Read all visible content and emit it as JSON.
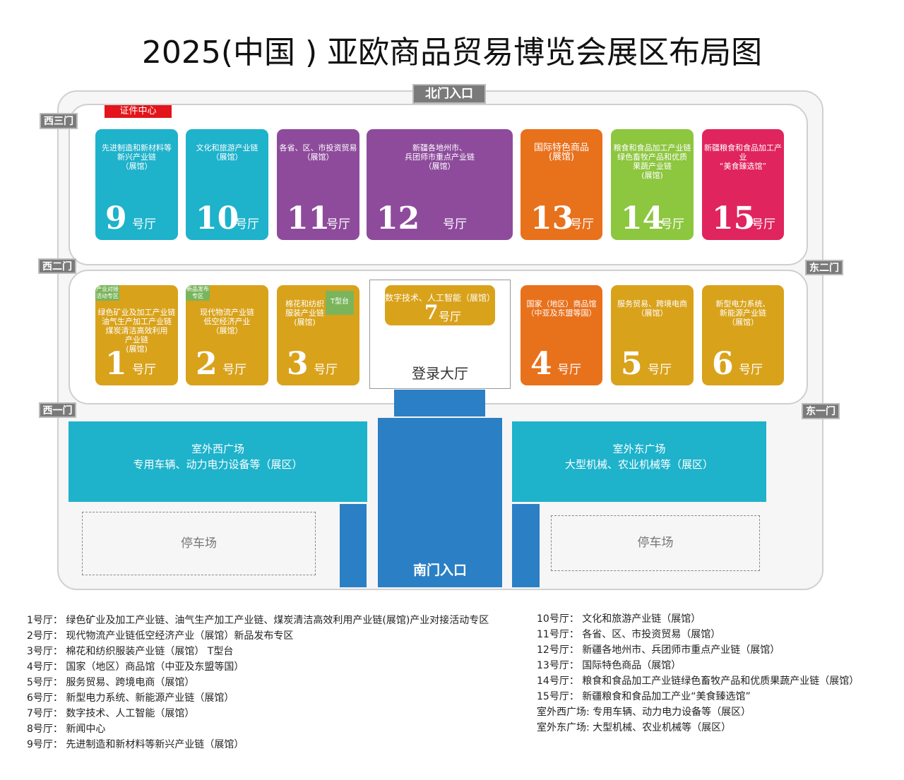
{
  "title": "2025(中国 ) 亚欧商品贸易博览会展区布局图",
  "colors": {
    "cyan": "#1eb2cb",
    "purple": "#8e4b9c",
    "orange": "#e8711c",
    "green": "#8dc63f",
    "pink": "#e0245e",
    "gold": "#d9a21b",
    "blue": "#2b7fc4",
    "gate": "#7a7a7a",
    "cert": "#e3141b"
  },
  "gates": {
    "north": "北门入口",
    "west3": "西三门",
    "west2": "西二门",
    "west1": "西一门",
    "east2": "东二门",
    "east1": "东一门",
    "south": "南门入口"
  },
  "cert_center": "证件中心",
  "unit": "号厅",
  "halls_top": [
    {
      "num": "9",
      "desc": "先进制造和新材料等\n新兴产业链\n（展馆）",
      "color": "cyan"
    },
    {
      "num": "10",
      "desc": "文化和旅游产业链\n（展馆）",
      "color": "cyan"
    },
    {
      "num": "11",
      "desc": "各省、区、市投资贸易\n（展馆）",
      "color": "purple"
    },
    {
      "num": "12",
      "desc": "新疆各地州市、\n兵团师市重点产业链\n（展馆）",
      "color": "purple"
    },
    {
      "num": "13",
      "desc": "国际特色商品\n(展馆)",
      "color": "orange"
    },
    {
      "num": "14",
      "desc": "粮食和食品加工产业链\n绿色畜牧产品和优质\n果蔬产业链\n(展馆)",
      "color": "green"
    },
    {
      "num": "15",
      "desc": "新疆粮食和食品加工产业\n“美食臻选馆”",
      "color": "pink"
    }
  ],
  "halls_bottom": [
    {
      "num": "1",
      "desc": "绿色矿业及加工产业链\n油气生产加工产业链\n煤炭清洁高效利用\n产业链\n(展馆)",
      "color": "gold",
      "tag": "产业对接\n活动专区"
    },
    {
      "num": "2",
      "desc": "现代物流产业链\n低空经济产业\n（展馆）",
      "color": "gold",
      "tag": "新品发布\n专区"
    },
    {
      "num": "3",
      "desc": "棉花和纺织\n服装产业链\n(展馆)",
      "color": "gold",
      "tag2": "T型台"
    },
    {
      "num": "4",
      "desc": "国家（地区）商品馆\n（中亚及东盟等国）",
      "color": "orange"
    },
    {
      "num": "5",
      "desc": "服务贸易、跨境电商\n（展馆）",
      "color": "gold"
    },
    {
      "num": "6",
      "desc": "新型电力系统、\n新能源产业链\n（展馆）",
      "color": "gold"
    }
  ],
  "hall7": {
    "desc": "数字技术、人工智能（展馆）",
    "num": "7"
  },
  "lobby": "登录大厅",
  "plaza_west": {
    "name": "室外西广场",
    "desc": "专用车辆、动力电力设备等（展区）"
  },
  "plaza_east": {
    "name": "室外东广场",
    "desc": "大型机械、农业机械等（展区）"
  },
  "parking": "停车场",
  "legend_left": [
    "1号厅： 绿色矿业及加工产业链、油气生产加工产业链、煤炭清洁高效利用产业链(展馆)产业对接活动专区",
    "2号厅： 现代物流产业链低空经济产业（展馆）新品发布专区",
    "3号厅： 棉花和纺织服装产业链（展馆） T型台",
    "4号厅： 国家（地区）商品馆（中亚及东盟等国）",
    "5号厅： 服务贸易、跨境电商（展馆）",
    "6号厅： 新型电力系统、新能源产业链（展馆）",
    "7号厅： 数字技术、人工智能（展馆）",
    "8号厅： 新闻中心",
    "9号厅： 先进制造和新材料等新兴产业链（展馆）"
  ],
  "legend_right": [
    "10号厅： 文化和旅游产业链（展馆）",
    "11号厅： 各省、区、市投资贸易（展馆）",
    "12号厅： 新疆各地州市、兵团师市重点产业链（展馆）",
    "13号厅： 国际特色商品（展馆）",
    "14号厅： 粮食和食品加工产业链绿色畜牧产品和优质果蔬产业链（展馆）",
    "15号厅： 新疆粮食和食品加工产业“美食臻选馆”",
    "室外西广场: 专用车辆、动力电力设备等（展区）",
    "室外东广场: 大型机械、农业机械等（展区）"
  ]
}
